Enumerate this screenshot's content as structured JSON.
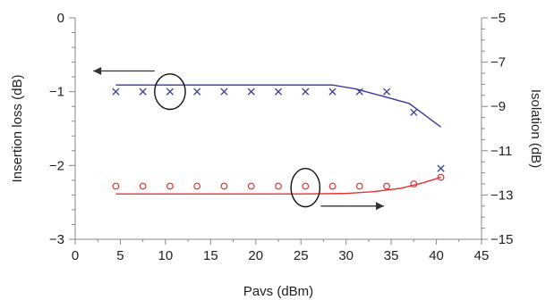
{
  "chart_data": {
    "type": "line",
    "title": "",
    "xlabel": "Pavs (dBm)",
    "ylabel_left": "Insertion loss (dB)",
    "ylabel_right": "Isolation (dB)",
    "xlim": [
      0,
      45
    ],
    "ylim_left": [
      -3,
      0
    ],
    "ylim_right": [
      -15,
      -5
    ],
    "xticks": [
      "0",
      "5",
      "10",
      "15",
      "20",
      "25",
      "30",
      "35",
      "40",
      "45"
    ],
    "yticks_left": [
      "0",
      "−1",
      "−2",
      "−3"
    ],
    "yticks_right": [
      "−5",
      "−7",
      "−9",
      "−11",
      "−13",
      "−15"
    ],
    "grid": false,
    "legend": "none",
    "series": [
      {
        "axis": "left",
        "style": "line",
        "color": "#3a3aa0",
        "x": [
          4.5,
          10,
          15,
          20,
          25,
          28.5,
          31,
          34,
          37,
          40.5
        ],
        "y": [
          -0.91,
          -0.91,
          -0.91,
          -0.91,
          -0.91,
          -0.91,
          -0.96,
          -1.06,
          -1.16,
          -1.48
        ]
      },
      {
        "axis": "left",
        "style": "x-markers",
        "color": "#3a3aa0",
        "x": [
          4.5,
          7.5,
          10.5,
          13.5,
          16.5,
          19.5,
          22.5,
          25.5,
          28.5,
          31.5,
          34.5,
          37.5,
          40.5
        ],
        "y": [
          -1.0,
          -1.0,
          -1.0,
          -1.0,
          -1.0,
          -1.0,
          -1.0,
          -1.0,
          -1.0,
          -1.0,
          -1.0,
          -1.28,
          -2.04
        ]
      },
      {
        "axis": "right",
        "style": "line",
        "color": "#e83030",
        "x": [
          4.5,
          10,
          15,
          20,
          25,
          30,
          33,
          36,
          38.5,
          40.5
        ],
        "y": [
          -12.95,
          -12.95,
          -12.95,
          -12.95,
          -12.95,
          -12.93,
          -12.85,
          -12.7,
          -12.45,
          -12.2
        ]
      },
      {
        "axis": "right",
        "style": "o-markers",
        "color": "#e83030",
        "x": [
          4.5,
          7.5,
          10.5,
          13.5,
          16.5,
          19.5,
          22.5,
          25.5,
          28.5,
          31.5,
          34.5,
          37.5,
          40.5
        ],
        "y": [
          -12.6,
          -12.6,
          -12.6,
          -12.6,
          -12.6,
          -12.6,
          -12.6,
          -12.6,
          -12.6,
          -12.6,
          -12.6,
          -12.5,
          -12.2
        ]
      }
    ],
    "annotations": [
      {
        "type": "ellipse",
        "axis": "left",
        "cx": 10.5,
        "cy": -1.0,
        "rx": 1.7,
        "ry": 0.24
      },
      {
        "type": "arrow",
        "axis": "left",
        "from": [
          8.8,
          -0.72
        ],
        "to": [
          2.0,
          -0.72
        ],
        "direction": "left"
      },
      {
        "type": "ellipse",
        "axis": "left",
        "cx": 25.5,
        "cy": -2.3,
        "rx": 1.6,
        "ry": 0.26
      },
      {
        "type": "arrow",
        "axis": "left",
        "from": [
          27.2,
          -2.55
        ],
        "to": [
          34.2,
          -2.55
        ],
        "direction": "right"
      }
    ]
  }
}
